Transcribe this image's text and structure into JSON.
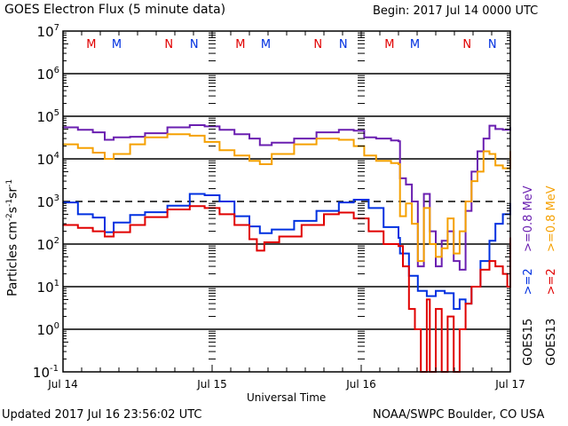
{
  "header": {
    "title": "GOES Electron Flux (5 minute data)",
    "begin": "Begin: 2017 Jul 14 0000 UTC"
  },
  "footer": {
    "updated": "Updated 2017 Jul 16 23:56:02 UTC",
    "source": "NOAA/SWPC Boulder, CO USA"
  },
  "chart_data": {
    "type": "line",
    "title": "GOES Electron Flux (5 minute data)",
    "xlabel": "Universal Time",
    "ylabel": "Particles cm-2 s-1 sr-1",
    "ylabel_parts": {
      "main": "Particles cm",
      "e1": "-2",
      "s": "s",
      "e2": "-1",
      "sr": "sr",
      "e3": "-1"
    },
    "yscale": "log",
    "ylim": [
      0.1,
      10000000
    ],
    "xlim": [
      0,
      3
    ],
    "x_unit": "days since 2017 Jul 14 0000 UTC",
    "x_ticks": [
      {
        "value": 0,
        "label": "Jul 14"
      },
      {
        "value": 1,
        "label": "Jul 15"
      },
      {
        "value": 2,
        "label": "Jul 16"
      },
      {
        "value": 3,
        "label": "Jul 17"
      }
    ],
    "y_ticks": [
      {
        "exp": 7,
        "base": "10",
        "sup": "7"
      },
      {
        "exp": 6,
        "base": "10",
        "sup": "6"
      },
      {
        "exp": 5,
        "base": "10",
        "sup": "5"
      },
      {
        "exp": 4,
        "base": "10",
        "sup": "4"
      },
      {
        "exp": 3,
        "base": "10",
        "sup": "3"
      },
      {
        "exp": 2,
        "base": "10",
        "sup": "2"
      },
      {
        "exp": 1,
        "base": "10",
        "sup": "1"
      },
      {
        "exp": 0,
        "base": "10",
        "sup": "0"
      },
      {
        "exp": -1,
        "base": "10",
        "sup": "-1"
      }
    ],
    "grid": {
      "solid_decades": [
        6,
        5,
        4,
        2,
        1,
        0
      ],
      "dashed_decades": [
        3
      ]
    },
    "markers": [
      {
        "label": "M",
        "x": 0.39,
        "color": "#e00000"
      },
      {
        "label": "M",
        "x": 0.56,
        "color": "#0030e0"
      },
      {
        "label": "N",
        "x": 0.89,
        "color": "#e00000"
      },
      {
        "label": "N",
        "x": 1.06,
        "color": "#0030e0"
      },
      {
        "label": "M",
        "x": 1.39,
        "color": "#e00000"
      },
      {
        "label": "M",
        "x": 1.56,
        "color": "#0030e0"
      },
      {
        "label": "N",
        "x": 1.89,
        "color": "#e00000"
      },
      {
        "label": "N",
        "x": 2.06,
        "color": "#0030e0"
      },
      {
        "label": "M",
        "x": 2.39,
        "color": "#e00000"
      },
      {
        "label": "M",
        "x": 2.56,
        "color": "#0030e0"
      },
      {
        "label": "N",
        "x": 2.89,
        "color": "#e00000"
      },
      {
        "label": "N",
        "x": 3.06,
        "color": "#0030e0"
      }
    ],
    "legend": {
      "placement": "right",
      "columns": [
        {
          "satellite": "GOES15",
          "entries": [
            {
              "label": ">=2",
              "color": "#0030e0"
            },
            {
              "label": ">=0.8 MeV",
              "color": "#6a1fb0"
            }
          ]
        },
        {
          "satellite": "GOES13",
          "entries": [
            {
              "label": ">=2",
              "color": "#e00000"
            },
            {
              "label": ">=0.8 MeV",
              "color": "#f5a000"
            }
          ]
        }
      ]
    },
    "series": [
      {
        "name": "GOES15 >=0.8 MeV",
        "color": "#6a1fb0",
        "x": [
          0,
          0.1,
          0.2,
          0.28,
          0.34,
          0.45,
          0.55,
          0.7,
          0.85,
          0.95,
          1.05,
          1.15,
          1.25,
          1.32,
          1.4,
          1.55,
          1.7,
          1.85,
          1.95,
          2.02,
          2.1,
          2.2,
          2.25,
          2.26,
          2.3,
          2.34,
          2.38,
          2.42,
          2.46,
          2.5,
          2.54,
          2.58,
          2.62,
          2.66,
          2.7,
          2.74,
          2.78,
          2.82,
          2.86,
          2.9,
          2.95,
          3.0
        ],
        "y": [
          55000,
          48000,
          42000,
          28000,
          32000,
          33000,
          40000,
          55000,
          62000,
          58000,
          48000,
          38000,
          30000,
          21000,
          24000,
          30000,
          42000,
          48000,
          46000,
          32000,
          30000,
          27000,
          26000,
          3500,
          2500,
          1000,
          30,
          1500,
          200,
          30,
          120,
          200,
          40,
          25,
          600,
          5000,
          15000,
          30000,
          60000,
          50000,
          48000,
          55000
        ]
      },
      {
        "name": "GOES13 >=0.8 MeV",
        "color": "#f5a000",
        "x": [
          0,
          0.1,
          0.2,
          0.28,
          0.34,
          0.45,
          0.55,
          0.7,
          0.85,
          0.95,
          1.05,
          1.15,
          1.25,
          1.32,
          1.4,
          1.55,
          1.7,
          1.85,
          1.95,
          2.02,
          2.1,
          2.2,
          2.25,
          2.26,
          2.3,
          2.34,
          2.38,
          2.42,
          2.46,
          2.5,
          2.54,
          2.58,
          2.62,
          2.66,
          2.7,
          2.74,
          2.78,
          2.82,
          2.86,
          2.9,
          2.95,
          3.0
        ],
        "y": [
          22000,
          18000,
          14000,
          10000,
          13000,
          22000,
          32000,
          38000,
          35000,
          25000,
          16000,
          12000,
          9000,
          7500,
          13000,
          22000,
          30000,
          28000,
          20000,
          12000,
          9000,
          8000,
          7500,
          450,
          900,
          300,
          40,
          700,
          100,
          50,
          80,
          400,
          60,
          200,
          1000,
          3000,
          5000,
          15000,
          13000,
          7000,
          6000,
          15000
        ]
      },
      {
        "name": "GOES15 >=2 MeV",
        "color": "#0030e0",
        "x": [
          0,
          0.1,
          0.2,
          0.28,
          0.34,
          0.45,
          0.55,
          0.7,
          0.85,
          0.95,
          1.05,
          1.15,
          1.25,
          1.32,
          1.4,
          1.55,
          1.7,
          1.85,
          1.95,
          2.05,
          2.15,
          2.25,
          2.26,
          2.32,
          2.38,
          2.44,
          2.5,
          2.56,
          2.62,
          2.66,
          2.7,
          2.74,
          2.8,
          2.86,
          2.9,
          2.95,
          3.0
        ],
        "y": [
          950,
          500,
          420,
          190,
          320,
          480,
          560,
          800,
          1500,
          1400,
          1000,
          450,
          260,
          180,
          220,
          350,
          600,
          950,
          1100,
          700,
          250,
          140,
          60,
          18,
          8,
          6,
          8,
          7,
          3,
          5,
          4,
          10,
          40,
          120,
          300,
          500,
          900
        ]
      },
      {
        "name": "GOES13 >=2 MeV",
        "color": "#e00000",
        "x": [
          0,
          0.1,
          0.2,
          0.28,
          0.34,
          0.45,
          0.55,
          0.7,
          0.85,
          0.95,
          1.05,
          1.15,
          1.25,
          1.3,
          1.35,
          1.45,
          1.6,
          1.75,
          1.85,
          1.95,
          2.05,
          2.15,
          2.25,
          2.28,
          2.32,
          2.36,
          2.4,
          2.44,
          2.46,
          2.5,
          2.54,
          2.58,
          2.62,
          2.66,
          2.7,
          2.74,
          2.8,
          2.86,
          2.9,
          2.95,
          2.98,
          3.0
        ],
        "y": [
          280,
          240,
          200,
          150,
          190,
          280,
          430,
          650,
          780,
          700,
          500,
          280,
          130,
          70,
          110,
          150,
          280,
          500,
          550,
          400,
          200,
          100,
          90,
          30,
          3,
          1,
          0.1,
          5,
          0.1,
          3,
          0.1,
          2,
          0.1,
          1,
          4,
          10,
          25,
          40,
          30,
          20,
          10,
          140
        ]
      }
    ]
  }
}
